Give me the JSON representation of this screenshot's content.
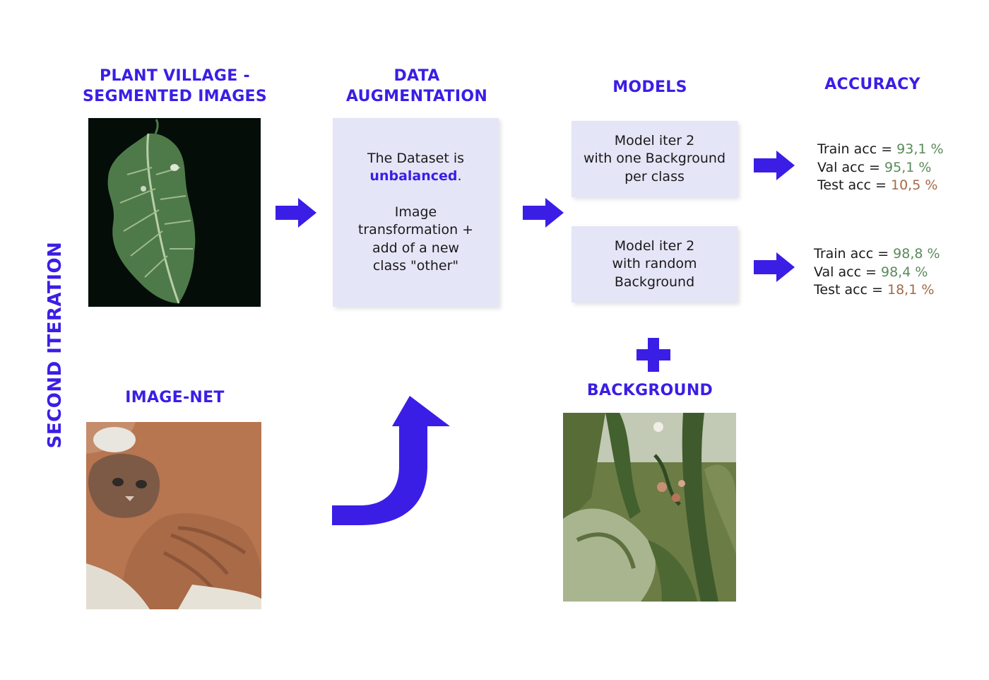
{
  "side_title": "SECOND ITERATION",
  "headings": {
    "plant_village": [
      "PLANT VILLAGE -",
      "SEGMENTED IMAGES"
    ],
    "data_augmentation": [
      "DATA",
      "AUGMENTATION"
    ],
    "models": "MODELS",
    "accuracy": "ACCURACY",
    "image_net": "IMAGE-NET",
    "background": "BACKGROUND"
  },
  "augmentation_box": {
    "line1": "The Dataset is",
    "highlight": "unbalanced",
    "highlight_suffix": ".",
    "line3": "Image",
    "line4": "transformation +",
    "line5": "add of a new",
    "line6": "class \"other\""
  },
  "models": [
    {
      "lines": [
        "Model iter 2",
        "with one Background",
        "per class"
      ]
    },
    {
      "lines": [
        "Model iter 2",
        "with random",
        "Background"
      ]
    }
  ],
  "accuracy": [
    {
      "train_label": "Train acc = ",
      "train_value": "93,1 %",
      "val_label": "Val acc = ",
      "val_value": "95,1 %",
      "test_label": "Test acc = ",
      "test_value": "10,5 %"
    },
    {
      "train_label": "Train acc = ",
      "train_value": "98,8 %",
      "val_label": "Val acc = ",
      "val_value": "98,4 %",
      "test_label": "Test acc = ",
      "test_value": "18,1 %"
    }
  ],
  "colors": {
    "accent": "#3a1ee6",
    "box_fill": "#e5e5f8",
    "good_value": "#5a8a5a",
    "bad_value": "#a26a4a"
  },
  "images": {
    "leaf": "tomato-leaf-photo",
    "cat": "cat-photo",
    "background": "tomato-plant-photo"
  }
}
